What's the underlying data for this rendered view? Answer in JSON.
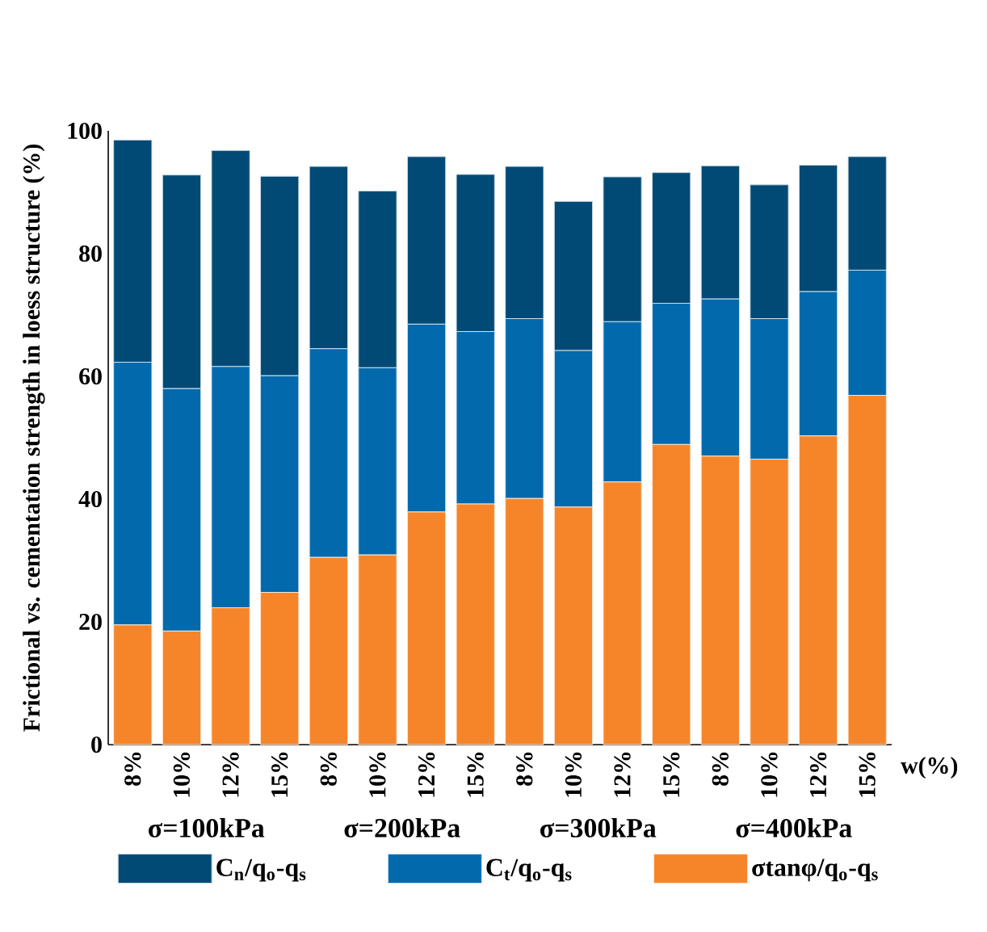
{
  "chart_data": {
    "type": "bar",
    "stacked": true,
    "ylabel": "Frictional vs. cementation strength in loess structure (%)",
    "xlabel": "w(%)",
    "categories": [
      "8%",
      "10%",
      "12%",
      "15%",
      "8%",
      "10%",
      "12%",
      "15%",
      "8%",
      "10%",
      "12%",
      "15%",
      "8%",
      "10%",
      "12%",
      "15%"
    ],
    "series": [
      {
        "name": "σtanφ/q$_{o}$-q$_{s}$",
        "color": "#f6852a",
        "values": [
          19.5,
          18.5,
          22.3,
          24.8,
          30.5,
          30.9,
          37.9,
          39.2,
          40.1,
          38.7,
          42.8,
          48.9,
          47.0,
          46.5,
          50.3,
          56.9
        ]
      },
      {
        "name": "C$_{t}$/q$_{o}$-q$_{s}$",
        "color": "#0369ad",
        "values": [
          42.8,
          39.5,
          39.3,
          35.3,
          34.0,
          30.5,
          30.6,
          28.1,
          29.3,
          25.5,
          26.1,
          23.0,
          25.6,
          22.9,
          23.5,
          20.4
        ]
      },
      {
        "name": "C$_{n}$/q$_{o}$-q$_{s}$",
        "color": "#004a75",
        "values": [
          36.2,
          34.8,
          35.2,
          32.5,
          29.7,
          28.8,
          27.3,
          25.6,
          24.8,
          24.3,
          23.6,
          21.3,
          21.7,
          21.8,
          20.6,
          18.5
        ]
      }
    ],
    "annotations": [
      "σ=100kPa",
      "σ=200kPa",
      "σ=300kPa",
      "σ=400kPa"
    ],
    "ylim": [
      0,
      100
    ],
    "yticks": [
      0,
      20,
      40,
      60,
      80,
      100
    ],
    "legend": "bottom"
  }
}
